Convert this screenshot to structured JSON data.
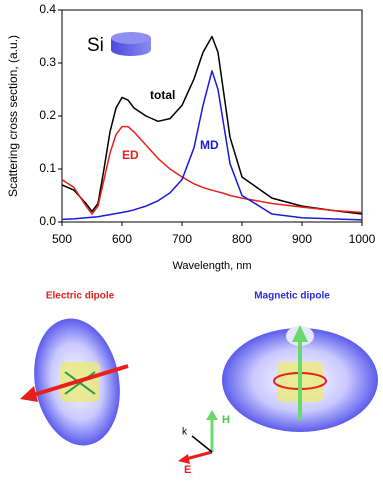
{
  "chart_data": {
    "type": "line",
    "inset_label": "Si",
    "ylabel": "Scattering cross section, (a.u.)",
    "xlabel": "Wavelength, nm",
    "x": [
      500,
      520,
      540,
      550,
      560,
      570,
      580,
      590,
      600,
      610,
      620,
      640,
      660,
      680,
      700,
      720,
      735,
      750,
      760,
      770,
      780,
      800,
      850,
      900,
      950,
      1000
    ],
    "series": [
      {
        "name": "total",
        "color": "#000000",
        "values": [
          0.07,
          0.06,
          0.035,
          0.02,
          0.035,
          0.1,
          0.17,
          0.215,
          0.235,
          0.23,
          0.215,
          0.2,
          0.19,
          0.195,
          0.22,
          0.27,
          0.32,
          0.35,
          0.32,
          0.24,
          0.16,
          0.085,
          0.045,
          0.03,
          0.022,
          0.015
        ]
      },
      {
        "name": "ED",
        "color": "#e8201c",
        "values": [
          0.08,
          0.065,
          0.03,
          0.015,
          0.03,
          0.08,
          0.13,
          0.165,
          0.18,
          0.18,
          0.17,
          0.145,
          0.12,
          0.1,
          0.085,
          0.072,
          0.065,
          0.06,
          0.057,
          0.054,
          0.05,
          0.045,
          0.035,
          0.028,
          0.022,
          0.018
        ]
      },
      {
        "name": "MD",
        "color": "#1a1adc",
        "values": [
          0.005,
          0.006,
          0.008,
          0.009,
          0.01,
          0.012,
          0.014,
          0.016,
          0.018,
          0.02,
          0.023,
          0.03,
          0.04,
          0.055,
          0.08,
          0.14,
          0.22,
          0.285,
          0.25,
          0.18,
          0.11,
          0.05,
          0.015,
          0.008,
          0.006,
          0.004
        ]
      }
    ],
    "xlim": [
      500,
      1000
    ],
    "xticks": [
      500,
      600,
      700,
      800,
      900,
      1000
    ],
    "ylim": [
      0,
      0.4
    ],
    "yticks": [
      {
        "value": 0,
        "label": "0.0"
      },
      0.1,
      0.2,
      0.3,
      0.4
    ]
  },
  "illustrations": {
    "electric_title": "Electric dipole",
    "magnetic_title": "Magnetic dipole",
    "axis_k": "k",
    "axis_h": "H",
    "axis_e": "E"
  }
}
